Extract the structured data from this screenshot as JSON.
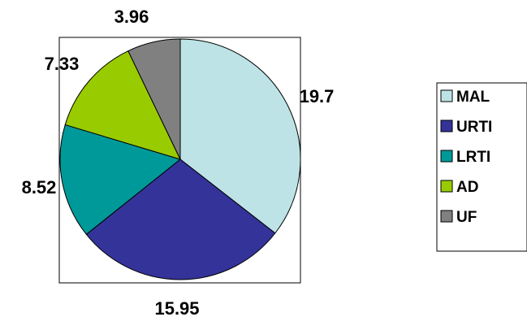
{
  "chart_data": {
    "type": "pie",
    "categories": [
      "MAL",
      "URTI",
      "LRTI",
      "AD",
      "UF"
    ],
    "values": [
      19.7,
      15.95,
      8.52,
      7.33,
      3.96
    ],
    "data_labels": [
      "19.7",
      "15.95",
      "8.52",
      "7.33",
      "3.96"
    ],
    "colors": [
      "#bde3e6",
      "#333399",
      "#009999",
      "#99cc00",
      "#808080"
    ],
    "start_angle_deg": 0,
    "direction": "clockwise",
    "legend_position": "right",
    "title": "",
    "plot_area_border": true,
    "legend_border": true
  }
}
